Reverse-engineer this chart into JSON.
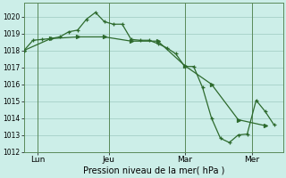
{
  "background_color": "#cceee8",
  "grid_color": "#aad4cc",
  "line_color": "#2d6a2d",
  "xlabel": "Pression niveau de la mer( hPa )",
  "ylim": [
    1012,
    1020.8
  ],
  "yticks": [
    1012,
    1013,
    1014,
    1015,
    1016,
    1017,
    1018,
    1019,
    1020
  ],
  "xlim": [
    0,
    29
  ],
  "xtick_positions": [
    1.5,
    9.5,
    18.0,
    25.5
  ],
  "xtick_labels": [
    "Lun",
    "Jeu",
    "Mar",
    "Mer"
  ],
  "vlines": [
    1.5,
    9.5,
    18.0,
    25.5
  ],
  "series1_x": [
    0,
    1,
    2,
    3,
    4,
    5,
    6,
    7,
    8,
    9,
    10,
    11,
    12,
    13,
    14,
    15,
    16,
    17,
    18,
    19,
    20,
    21,
    22,
    23,
    24,
    25,
    26,
    27,
    28
  ],
  "series1_y": [
    1018.0,
    1018.6,
    1018.65,
    1018.7,
    1018.8,
    1019.1,
    1019.2,
    1019.85,
    1020.25,
    1019.7,
    1019.55,
    1019.55,
    1018.65,
    1018.6,
    1018.6,
    1018.4,
    1018.15,
    1017.8,
    1017.05,
    1017.05,
    1015.8,
    1014.0,
    1012.8,
    1012.55,
    1013.0,
    1013.05,
    1015.05,
    1014.4,
    1013.6
  ],
  "series2_x": [
    0,
    3,
    6,
    9,
    12,
    15,
    18,
    21,
    24,
    27
  ],
  "series2_y": [
    1018.0,
    1018.7,
    1018.8,
    1018.8,
    1018.55,
    1018.55,
    1017.1,
    1016.0,
    1013.9,
    1013.55
  ],
  "ylabel_fontsize": 5.5,
  "xlabel_fontsize": 7.0,
  "xtick_fontsize": 6.5,
  "linewidth": 0.9,
  "marker_size_s1": 3.5,
  "marker_size_s2": 3.5
}
